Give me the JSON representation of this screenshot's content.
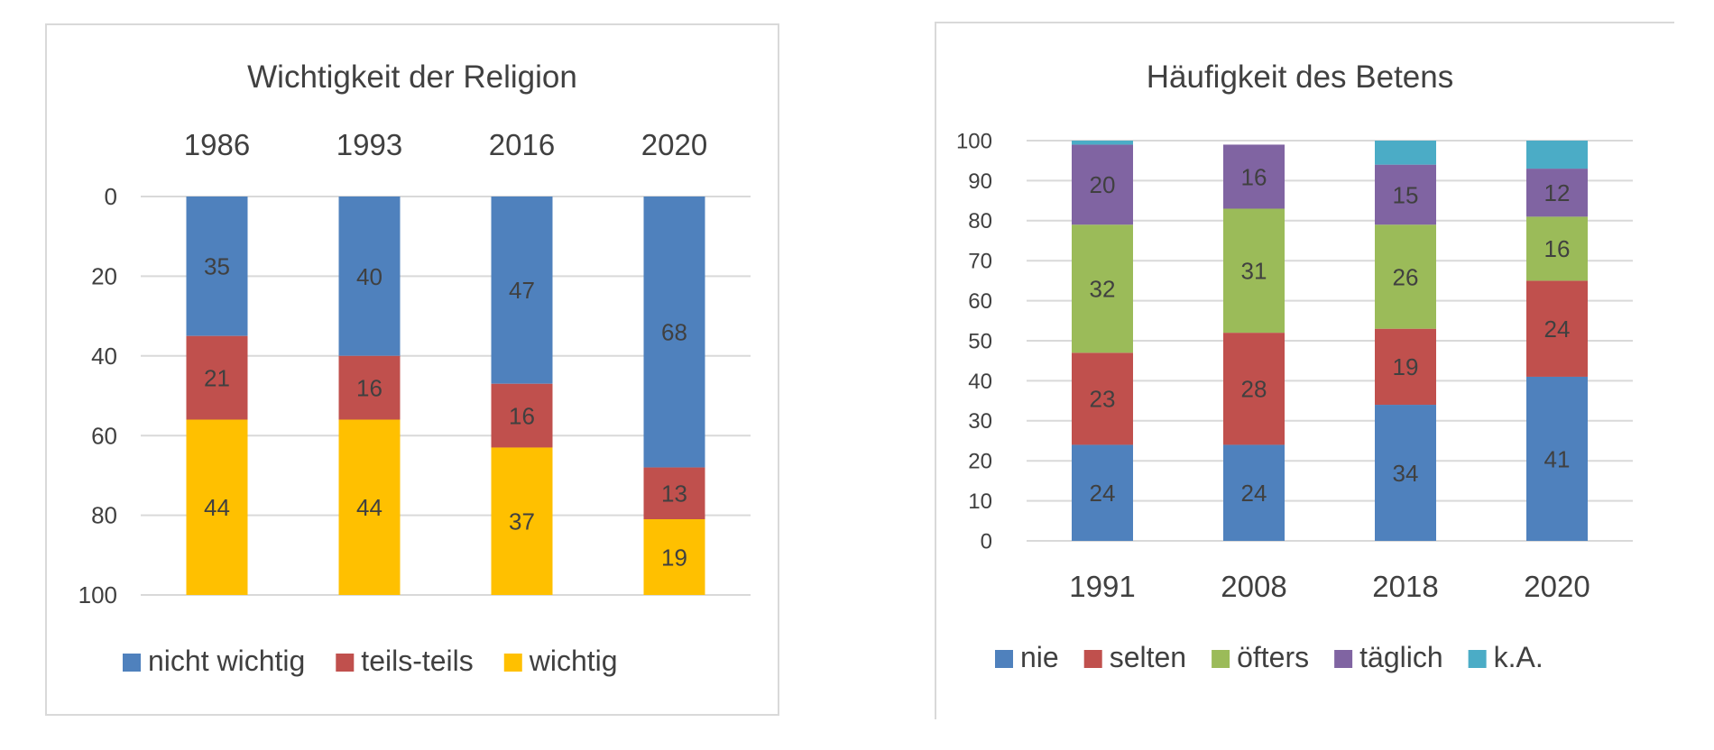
{
  "colors": {
    "nie": "#4f81bd",
    "selten": "#c0504d",
    "oefters": "#9bbb59",
    "taeglich": "#8064a2",
    "ka": "#4bacc6",
    "wichtig": "#ffc000",
    "grid": "#d9d9d9",
    "text": "#404040"
  },
  "chart_data": [
    {
      "type": "bar",
      "stacked": true,
      "reversed_axis": true,
      "title": "Wichtigkeit der Religion",
      "categories": [
        "1986",
        "1993",
        "2016",
        "2020"
      ],
      "ylim": [
        0,
        100
      ],
      "yticks": [
        "0",
        "20",
        "40",
        "60",
        "80",
        "100"
      ],
      "legend_position": "bottom",
      "series": [
        {
          "name": "nicht wichtig",
          "values": [
            35,
            40,
            47,
            68
          ],
          "color_key": "nie"
        },
        {
          "name": "teils-teils",
          "values": [
            21,
            16,
            16,
            13
          ],
          "color_key": "selten"
        },
        {
          "name": "wichtig",
          "values": [
            44,
            44,
            37,
            19
          ],
          "color_key": "wichtig"
        }
      ]
    },
    {
      "type": "bar",
      "stacked": true,
      "title": "Häufigkeit des Betens",
      "categories": [
        "1991",
        "2008",
        "2018",
        "2020"
      ],
      "ylim": [
        0,
        100
      ],
      "yticks": [
        "0",
        "10",
        "20",
        "30",
        "40",
        "50",
        "60",
        "70",
        "80",
        "90",
        "100"
      ],
      "legend_position": "bottom",
      "series": [
        {
          "name": "nie",
          "values": [
            24,
            24,
            34,
            41
          ],
          "color_key": "nie",
          "labels": [
            "24",
            "24",
            "34",
            "41"
          ]
        },
        {
          "name": "selten",
          "values": [
            23,
            28,
            19,
            24
          ],
          "color_key": "selten",
          "labels": [
            "23",
            "28",
            "19",
            "24"
          ]
        },
        {
          "name": "öfters",
          "values": [
            32,
            31,
            26,
            16
          ],
          "color_key": "oefters",
          "labels": [
            "32",
            "31",
            "26",
            "16"
          ]
        },
        {
          "name": "täglich",
          "values": [
            20,
            16,
            15,
            12
          ],
          "color_key": "taeglich",
          "labels": [
            "20",
            "16",
            "15",
            "12"
          ]
        },
        {
          "name": "k.A.",
          "values": [
            1,
            0,
            6,
            7
          ],
          "color_key": "ka",
          "labels": [
            "",
            "",
            "",
            ""
          ]
        }
      ]
    }
  ]
}
